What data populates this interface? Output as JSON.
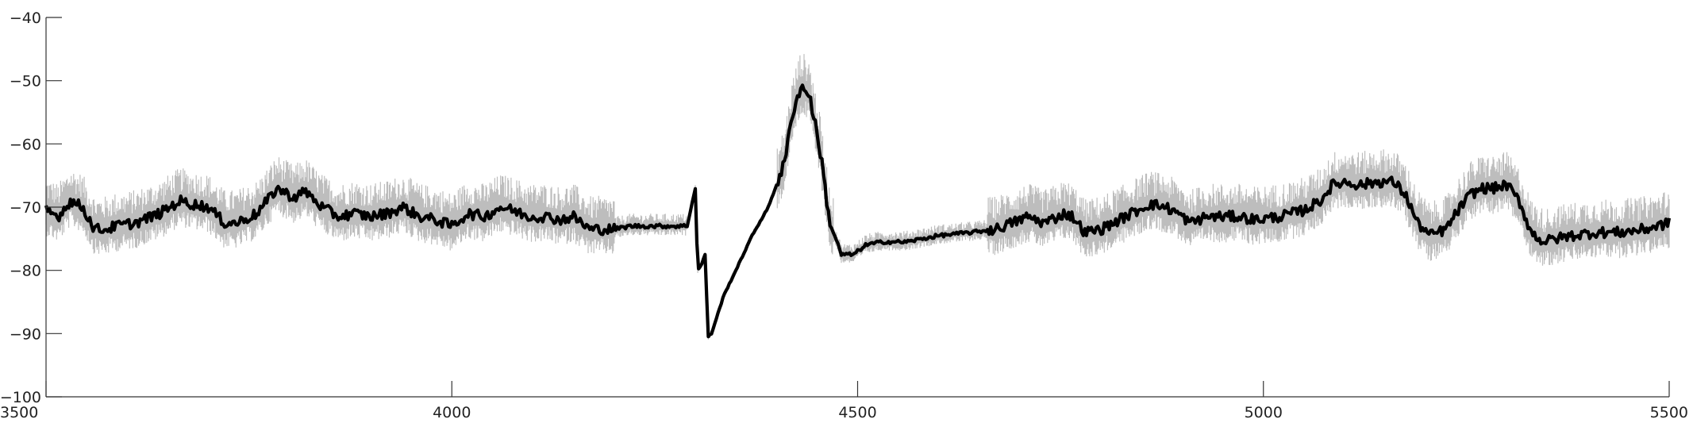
{
  "chart_data": {
    "type": "line",
    "title": "",
    "xlabel": "",
    "ylabel": "",
    "xlim": [
      3500,
      5500
    ],
    "ylim": [
      -100,
      -40
    ],
    "x_ticks": [
      3500,
      4000,
      4500,
      5000,
      5500
    ],
    "y_ticks": [
      -40,
      -50,
      -60,
      -70,
      -80,
      -90,
      -100
    ],
    "x_tick_labels": [
      "3500",
      "4000",
      "4500",
      "5000",
      "5500"
    ],
    "y_tick_labels": [
      "−40",
      "−50",
      "−60",
      "−70",
      "−80",
      "−90",
      "−100"
    ],
    "grid": false,
    "legend": "none",
    "colors": {
      "mean": "#000000",
      "band": "#bdbdbd",
      "axis": "#333333"
    },
    "series": [
      {
        "role": "mean",
        "x": [
          3500,
          3515,
          3530,
          3545,
          3560,
          3575,
          3585,
          3610,
          3640,
          3665,
          3680,
          3700,
          3720,
          3735,
          3760,
          3785,
          3805,
          3820,
          3840,
          3860,
          3880,
          3900,
          3920,
          3940,
          3960,
          3980,
          4000,
          4020,
          4040,
          4060,
          4075,
          4095,
          4115,
          4135,
          4150,
          4170,
          4185,
          4200,
          4220,
          4245,
          4270,
          4290,
          4300,
          4303,
          4308,
          4312,
          4316,
          4320,
          4325,
          4335,
          4350,
          4370,
          4390,
          4410,
          4420,
          4430,
          4440,
          4445,
          4455,
          4465,
          4480,
          4495,
          4510,
          4530,
          4560,
          4600,
          4640,
          4670,
          4690,
          4710,
          4730,
          4755,
          4765,
          4780,
          4800,
          4830,
          4860,
          4880,
          4895,
          4910,
          4930,
          4950,
          4970,
          4990,
          5020,
          5050,
          5070,
          5085,
          5100,
          5120,
          5140,
          5160,
          5175,
          5190,
          5205,
          5225,
          5240,
          5255,
          5270,
          5285,
          5300,
          5315,
          5330,
          5345,
          5360,
          5380,
          5410,
          5440,
          5470,
          5500
        ],
        "y": [
          -70.5,
          -71.5,
          -69,
          -70,
          -73.5,
          -73.5,
          -73,
          -72.5,
          -71,
          -69,
          -69.5,
          -70,
          -72.5,
          -72.5,
          -71,
          -67,
          -68.5,
          -67.5,
          -70,
          -71.5,
          -71,
          -71.5,
          -71,
          -70,
          -71.5,
          -72,
          -73,
          -71,
          -71.5,
          -70,
          -70.5,
          -71.5,
          -71.5,
          -72,
          -71.5,
          -73.5,
          -73.5,
          -73.5,
          -73,
          -73,
          -73,
          -73,
          -67,
          -80,
          -79,
          -77.5,
          -90.5,
          -90,
          -88,
          -84,
          -80,
          -74.5,
          -70,
          -63,
          -55,
          -51,
          -52,
          -55,
          -62,
          -72,
          -77.5,
          -77.5,
          -76,
          -75.5,
          -75.5,
          -74.5,
          -74,
          -73.5,
          -72.5,
          -71.5,
          -72.5,
          -71,
          -71.5,
          -74,
          -73.5,
          -71.5,
          -69.5,
          -70,
          -71,
          -72.5,
          -71.5,
          -71.5,
          -71.5,
          -72,
          -71.5,
          -70.5,
          -69,
          -66.5,
          -66,
          -66.5,
          -66,
          -66,
          -68,
          -72.5,
          -74.5,
          -73.5,
          -70.5,
          -68,
          -67,
          -67,
          -66.5,
          -69,
          -74,
          -75.5,
          -75,
          -74.5,
          -74,
          -74,
          -73.5,
          -72.5
        ]
      }
    ]
  }
}
